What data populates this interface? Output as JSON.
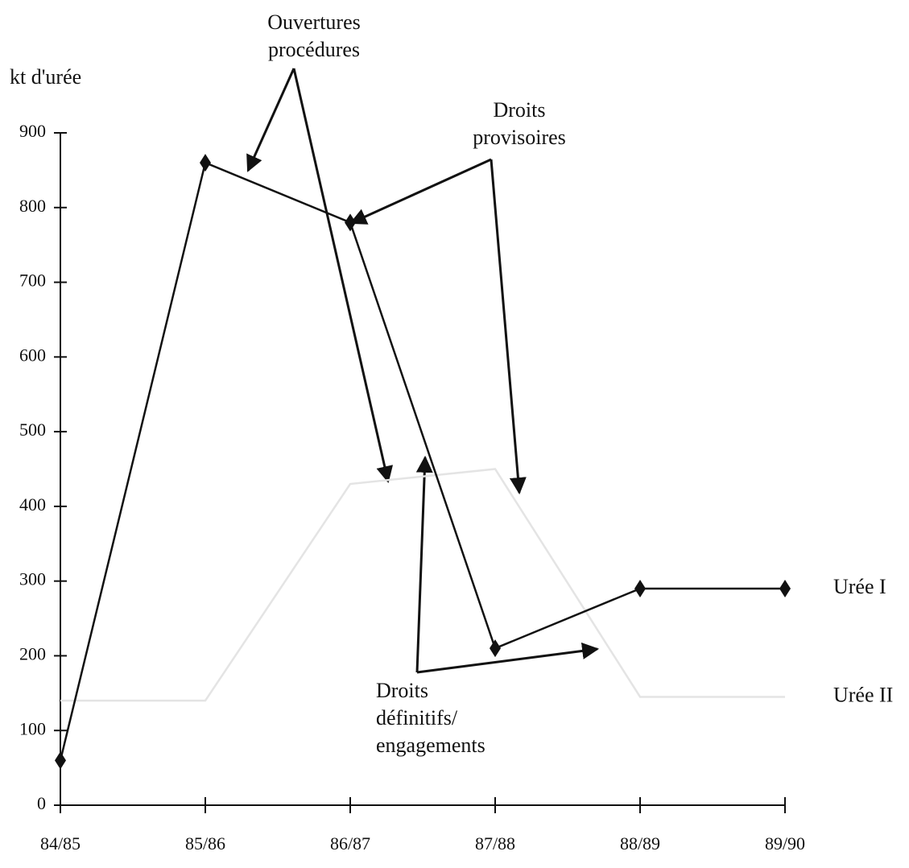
{
  "chart_data": {
    "type": "line",
    "y_label": "kt d'urée",
    "categories": [
      "84/85",
      "85/86",
      "86/87",
      "87/88",
      "88/89",
      "89/90"
    ],
    "series": [
      {
        "name": "Urée I",
        "color": "#111111",
        "values": [
          60,
          860,
          780,
          210,
          290,
          290
        ]
      },
      {
        "name": "Urée II",
        "color": "#e4e4e4",
        "values": [
          140,
          140,
          430,
          450,
          145,
          145
        ]
      }
    ],
    "ylim": [
      0,
      900
    ],
    "yticks": [
      0,
      100,
      200,
      300,
      400,
      500,
      600,
      700,
      800,
      900
    ],
    "annotations": [
      {
        "text": [
          "Ouvertures",
          "procédures"
        ]
      },
      {
        "text": [
          "Droits",
          "provisoires"
        ]
      },
      {
        "text": [
          "Droits",
          "définitifs/",
          "engagements"
        ]
      }
    ]
  }
}
